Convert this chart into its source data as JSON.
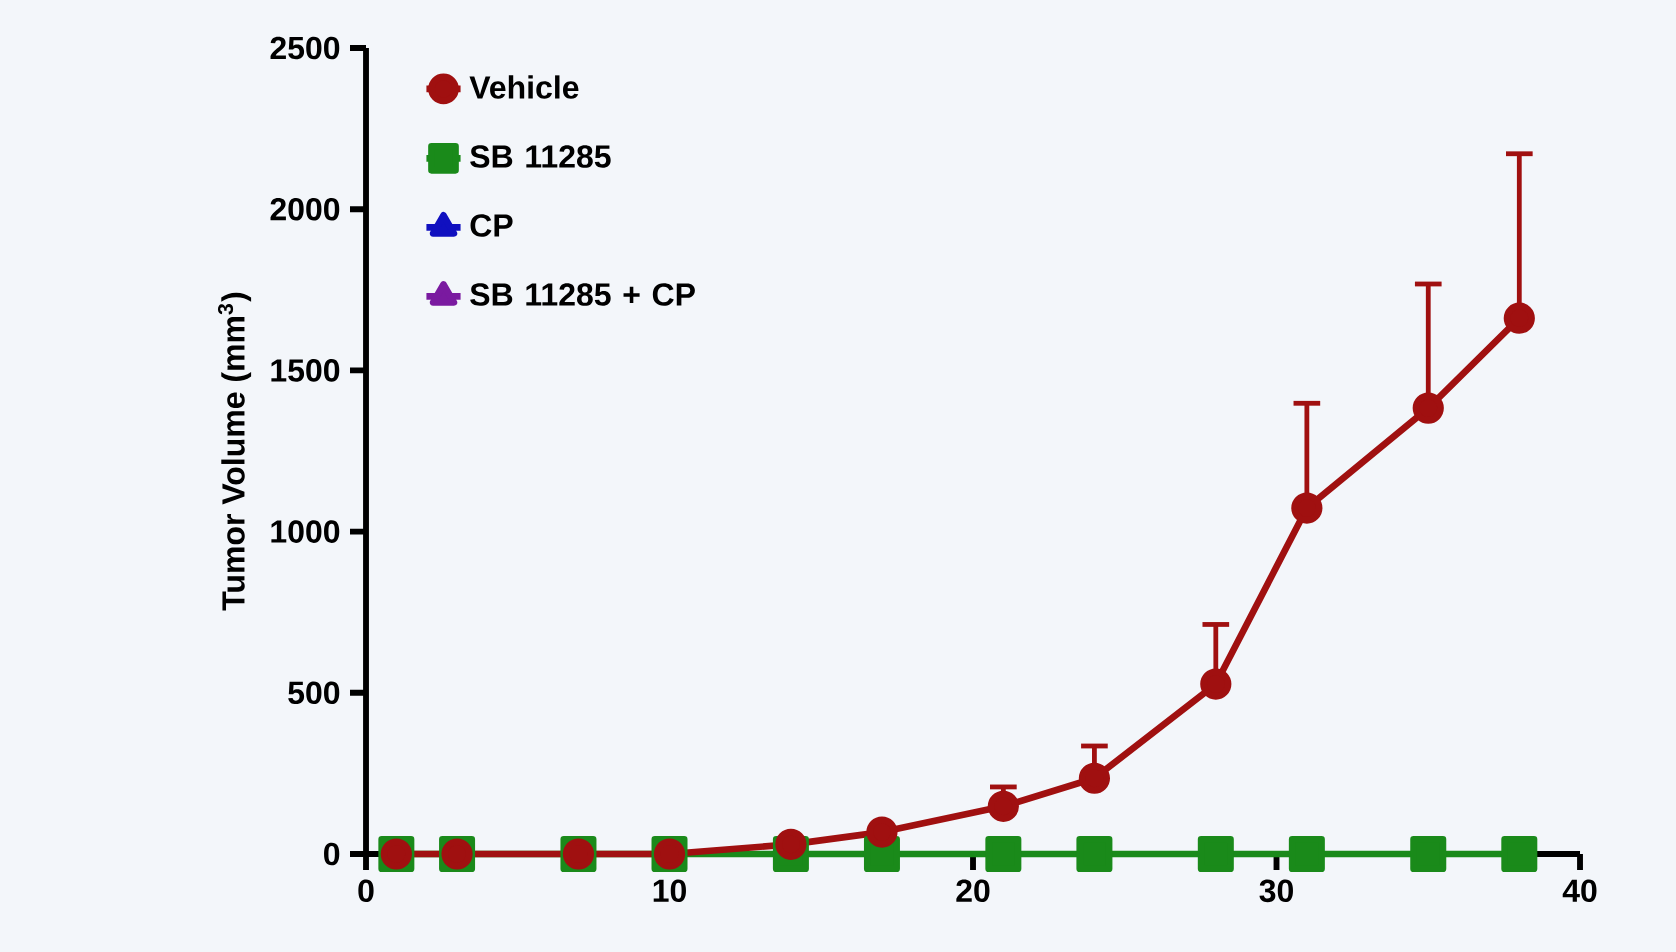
{
  "chart_data": {
    "type": "line",
    "ylabel": "Tumor Volume (mm$^{3}$)",
    "x": [
      1,
      3,
      7,
      10,
      14,
      17,
      21,
      24,
      28,
      31,
      35,
      38
    ],
    "xlim": [
      0,
      40
    ],
    "xticks": [
      0,
      10,
      20,
      30,
      40
    ],
    "ylim": [
      0,
      2500
    ],
    "yticks": [
      0,
      500,
      1000,
      1500,
      2000,
      2500
    ],
    "grid": false,
    "legend": "top left",
    "series": [
      {
        "name": "Vehicle",
        "color": "#a01010",
        "marker": "circle",
        "values": [
          0,
          0,
          0,
          0,
          30,
          68,
          148,
          235,
          527,
          1073,
          1383,
          1662
        ],
        "errors": [
          null,
          null,
          null,
          null,
          null,
          null,
          [
            148,
            208
          ],
          [
            235,
            335
          ],
          [
            527,
            712
          ],
          [
            1073,
            1398
          ],
          [
            1383,
            1768
          ],
          [
            1662,
            2172
          ]
        ]
      },
      {
        "name": "SB 11285",
        "color": "#1a8a1a",
        "marker": "square",
        "values": [
          0,
          0,
          0,
          0,
          0,
          0,
          0,
          0,
          0,
          0,
          0,
          0
        ]
      },
      {
        "name": "CP",
        "color": "#1010c0",
        "marker": "triangle",
        "values": [
          null,
          null,
          null,
          null,
          null,
          null,
          null,
          null,
          null,
          null,
          null,
          null
        ]
      },
      {
        "name": "SB 11285 + CP",
        "color": "#7a1aa0",
        "marker": "triangle_down",
        "values": [
          null,
          null,
          null,
          null,
          null,
          null,
          null,
          null,
          null,
          null,
          null,
          null
        ]
      }
    ]
  }
}
